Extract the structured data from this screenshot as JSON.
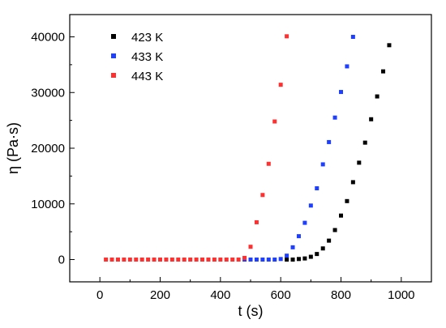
{
  "chart_data": {
    "type": "scatter",
    "title": "",
    "xlabel": "t (s)",
    "ylabel": "η (Pa·s)",
    "xlim": [
      -100,
      1100
    ],
    "ylim": [
      -4000,
      44000
    ],
    "xticks": [
      0,
      200,
      400,
      600,
      800,
      1000
    ],
    "yticks": [
      0,
      10000,
      20000,
      30000,
      40000
    ],
    "xtick_labels": [
      "0",
      "200",
      "400",
      "600",
      "800",
      "1000"
    ],
    "ytick_labels": [
      "0",
      "10000",
      "20000",
      "30000",
      "40000"
    ],
    "grid": false,
    "legend": {
      "position": "top-left",
      "frame": false
    },
    "series": [
      {
        "name": "423 K",
        "color": "#000000",
        "marker": "square",
        "x": [
          620,
          640,
          660,
          680,
          700,
          720,
          740,
          760,
          780,
          800,
          820,
          840,
          860,
          880,
          900,
          920,
          940,
          960
        ],
        "y": [
          0,
          0,
          100,
          200,
          500,
          1000,
          2000,
          3400,
          5300,
          7900,
          10500,
          13900,
          17400,
          21000,
          25200,
          29300,
          33800,
          38500
        ]
      },
      {
        "name": "433 K",
        "color": "#1f3fff",
        "marker": "square",
        "x": [
          480,
          500,
          520,
          540,
          560,
          580,
          600,
          620,
          640,
          660,
          680,
          700,
          720,
          740,
          760,
          780,
          800,
          820,
          840
        ],
        "y": [
          0,
          0,
          0,
          0,
          0,
          0,
          100,
          700,
          2200,
          4200,
          6600,
          9700,
          12800,
          17100,
          21100,
          25500,
          30100,
          34700,
          40000
        ]
      },
      {
        "name": "443 K",
        "color": "#ff3030",
        "marker": "square",
        "x": [
          20,
          40,
          60,
          80,
          100,
          120,
          140,
          160,
          180,
          200,
          220,
          240,
          260,
          280,
          300,
          320,
          340,
          360,
          380,
          400,
          420,
          440,
          460,
          480,
          500,
          520,
          540,
          560,
          580,
          600,
          620
        ],
        "y": [
          0,
          0,
          0,
          0,
          0,
          0,
          0,
          0,
          0,
          0,
          0,
          0,
          0,
          0,
          0,
          0,
          0,
          0,
          0,
          0,
          0,
          0,
          0,
          300,
          2300,
          6700,
          11600,
          17200,
          24800,
          31400,
          40100
        ]
      }
    ]
  }
}
